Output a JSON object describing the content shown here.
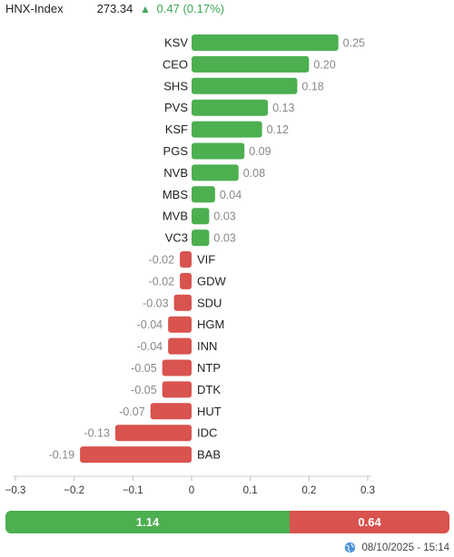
{
  "header": {
    "index_name": "HNX-Index",
    "index_value": "273.34",
    "arrow": "▲",
    "change": "0.47 (0.17%)"
  },
  "colors": {
    "positive": "#4caf50",
    "negative": "#d9534f",
    "label_text": "#888888",
    "ticker_text": "#222222"
  },
  "chart_data": {
    "type": "bar",
    "orientation": "horizontal",
    "categories": [
      "KSV",
      "CEO",
      "SHS",
      "PVS",
      "KSF",
      "PGS",
      "NVB",
      "MBS",
      "MVB",
      "VC3",
      "VIF",
      "GDW",
      "SDU",
      "HGM",
      "INN",
      "NTP",
      "DTK",
      "HUT",
      "IDC",
      "BAB"
    ],
    "values": [
      0.25,
      0.2,
      0.18,
      0.13,
      0.12,
      0.09,
      0.08,
      0.04,
      0.03,
      0.03,
      -0.02,
      -0.02,
      -0.03,
      -0.04,
      -0.04,
      -0.05,
      -0.05,
      -0.07,
      -0.13,
      -0.19
    ],
    "value_labels": [
      "0.25",
      "0.20",
      "0.18",
      "0.13",
      "0.12",
      "0.09",
      "0.08",
      "0.04",
      "0.03",
      "0.03",
      "-0.02",
      "-0.02",
      "-0.03",
      "-0.04",
      "-0.04",
      "-0.05",
      "-0.05",
      "-0.07",
      "-0.13",
      "-0.19"
    ],
    "xlim": [
      -0.3,
      0.3
    ],
    "x_ticks": [
      -0.3,
      -0.2,
      -0.1,
      0,
      0.1,
      0.2,
      0.3
    ],
    "x_tick_labels": [
      "−0.3",
      "−0.2",
      "−0.1",
      "0",
      "0.1",
      "0.2",
      "0.3"
    ],
    "grid": false,
    "legend": "none"
  },
  "breadth": {
    "positive_value": 1.14,
    "negative_value": 0.64,
    "positive_label": "1.14",
    "negative_label": "0.64"
  },
  "footer": {
    "icon": "globe-icon",
    "timestamp": "08/10/2025 - 15:14"
  }
}
